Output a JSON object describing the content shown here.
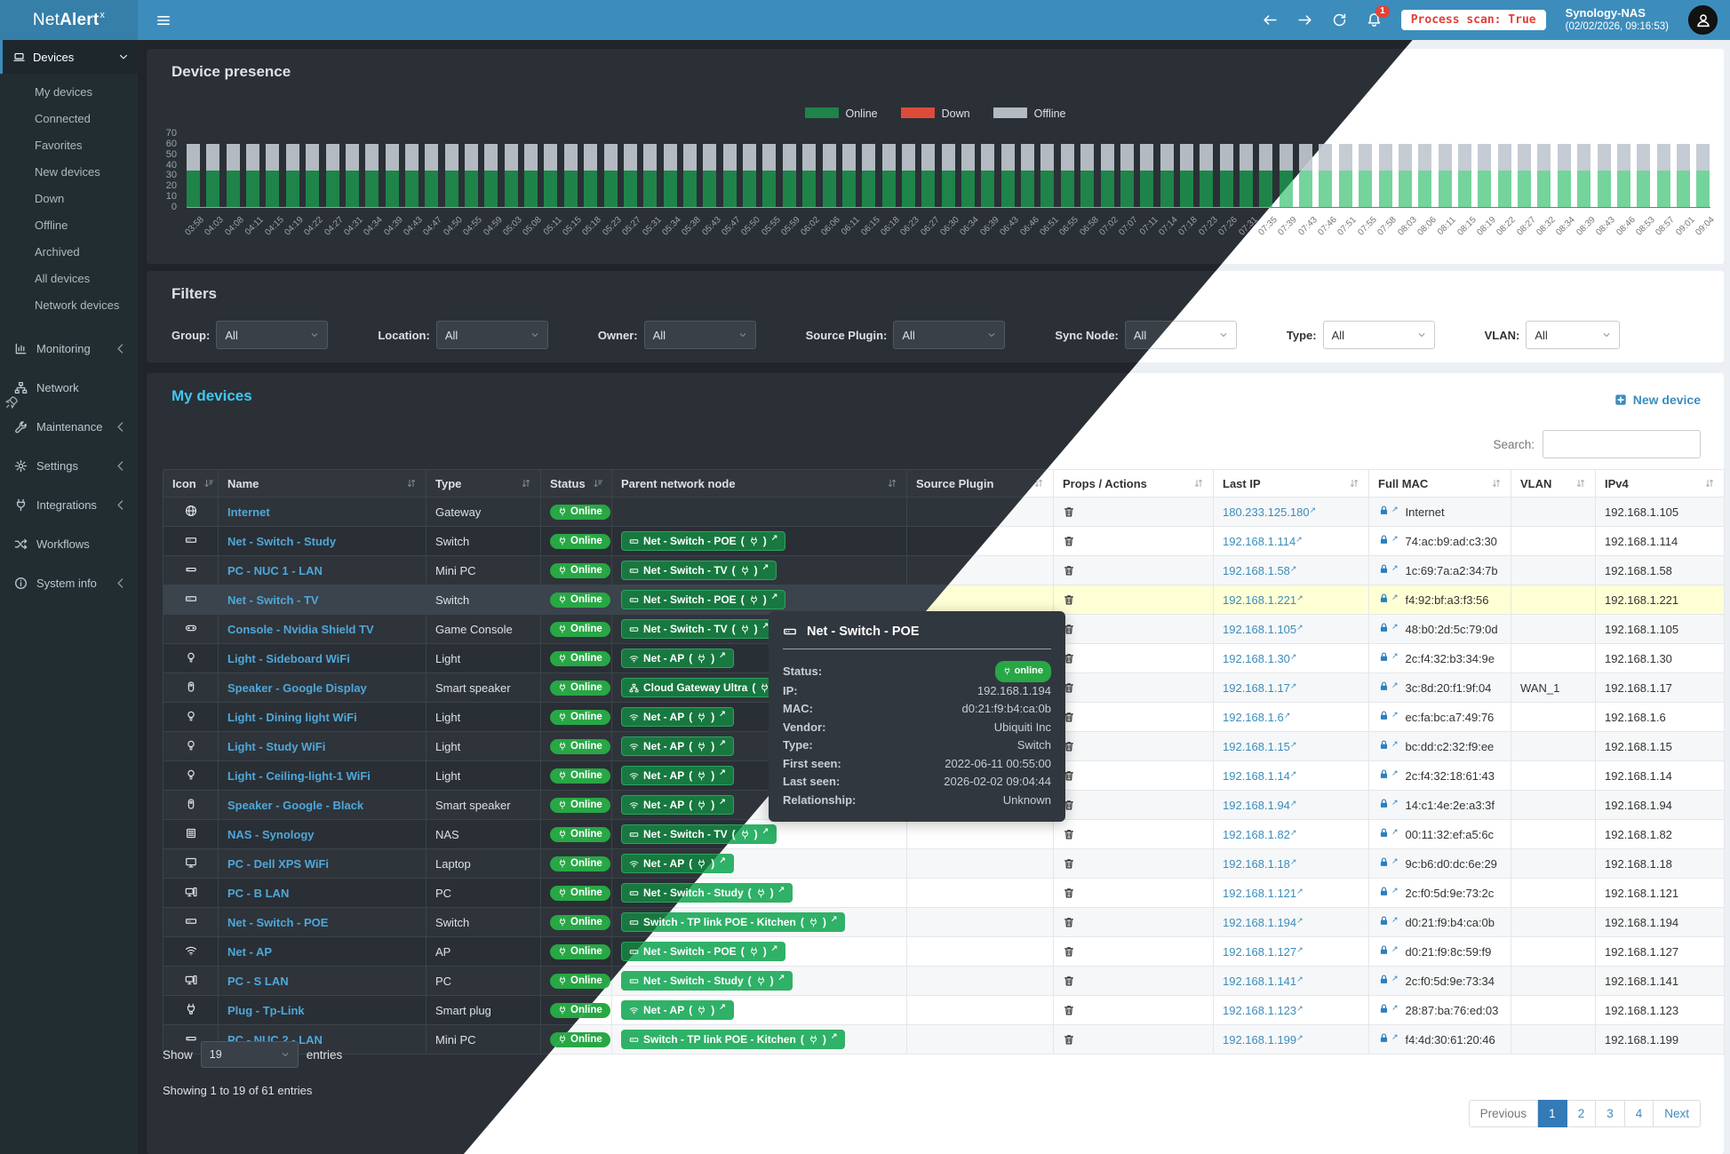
{
  "topbar": {
    "brand": {
      "pre": "Net",
      "bold": "Alert",
      "sup": "x"
    },
    "notification_badge": "1",
    "process_scan": "Process scan: True",
    "host_name": "Synology-NAS",
    "host_time": "(02/02/2026, 09:16:53)"
  },
  "glyphs": {
    "ext": "↗",
    "open": "(",
    "close": ")"
  },
  "sidebar": {
    "sections": [
      {
        "label": "Devices",
        "icon": "laptop",
        "chevron": "down",
        "children": [
          "My devices",
          "Connected",
          "Favorites",
          "New devices",
          "Down",
          "Offline",
          "Archived",
          "All devices",
          "Network devices"
        ]
      },
      {
        "label": "Monitoring",
        "icon": "chart",
        "chevron": "left"
      },
      {
        "label": "Network",
        "icon": "network",
        "chevron": ""
      },
      {
        "label": "Maintenance",
        "icon": "wrench",
        "chevron": "left"
      },
      {
        "label": "Settings",
        "icon": "gear",
        "chevron": "left"
      },
      {
        "label": "Integrations",
        "icon": "plug",
        "chevron": "left"
      },
      {
        "label": "Workflows",
        "icon": "shuffle",
        "chevron": ""
      },
      {
        "label": "System info",
        "icon": "info",
        "chevron": "left"
      }
    ]
  },
  "chart_data": {
    "type": "bar",
    "stacked": true,
    "title": "Device presence",
    "xlabel": "",
    "ylabel": "",
    "ylim": [
      0,
      70
    ],
    "yticks": [
      0,
      10,
      20,
      30,
      40,
      50,
      60,
      70
    ],
    "grid": false,
    "legend_position": "top-center",
    "categories": [
      "03:58",
      "04:03",
      "04:08",
      "04:11",
      "04:15",
      "04:19",
      "04:22",
      "04:27",
      "04:31",
      "04:34",
      "04:39",
      "04:43",
      "04:47",
      "04:50",
      "04:55",
      "04:59",
      "05:03",
      "05:08",
      "05:11",
      "05:15",
      "05:18",
      "05:23",
      "05:27",
      "05:31",
      "05:34",
      "05:38",
      "05:43",
      "05:47",
      "05:50",
      "05:55",
      "05:59",
      "06:02",
      "06:06",
      "06:11",
      "06:15",
      "06:18",
      "06:23",
      "06:27",
      "06:30",
      "06:34",
      "06:39",
      "06:43",
      "06:46",
      "06:51",
      "06:55",
      "06:58",
      "07:02",
      "07:07",
      "07:11",
      "07:14",
      "07:18",
      "07:23",
      "07:26",
      "07:31",
      "07:35",
      "07:39",
      "07:43",
      "07:46",
      "07:51",
      "07:55",
      "07:58",
      "08:03",
      "08:06",
      "08:11",
      "08:15",
      "08:19",
      "08:22",
      "08:27",
      "08:32",
      "08:34",
      "08:39",
      "08:43",
      "08:46",
      "08:53",
      "08:57",
      "09:01",
      "09:04"
    ],
    "series": [
      {
        "name": "Online",
        "color_dark": "#1e8449",
        "color_light": "#74d49c",
        "values": [
          35,
          35,
          35,
          35,
          35,
          35,
          35,
          35,
          35,
          35,
          35,
          35,
          35,
          35,
          35,
          35,
          35,
          35,
          35,
          35,
          35,
          35,
          35,
          35,
          35,
          35,
          35,
          35,
          35,
          35,
          35,
          35,
          35,
          35,
          35,
          35,
          35,
          35,
          35,
          35,
          35,
          35,
          35,
          35,
          35,
          35,
          35,
          35,
          35,
          35,
          35,
          35,
          35,
          35,
          35,
          35,
          35,
          35,
          35,
          35,
          35,
          35,
          35,
          35,
          35,
          35,
          35,
          35,
          35,
          35,
          35,
          35,
          35,
          35,
          35,
          35,
          35
        ]
      },
      {
        "name": "Down",
        "color_dark": "#dd4b39",
        "color_light": "#e2574c",
        "values": [
          0,
          0,
          0,
          0,
          0,
          0,
          0,
          0,
          0,
          0,
          0,
          0,
          0,
          0,
          0,
          0,
          0,
          0,
          0,
          0,
          0,
          0,
          0,
          0,
          0,
          0,
          0,
          0,
          0,
          0,
          0,
          0,
          0,
          0,
          0,
          0,
          0,
          0,
          0,
          0,
          0,
          0,
          0,
          0,
          0,
          0,
          0,
          0,
          0,
          0,
          0,
          0,
          0,
          0,
          0,
          0,
          0,
          0,
          0,
          0,
          0,
          0,
          0,
          0,
          0,
          0,
          0,
          0,
          0,
          0,
          0,
          0,
          0,
          0,
          0,
          0,
          0
        ]
      },
      {
        "name": "Offline",
        "color_dark": "#b4bac2",
        "color_light": "#c6ccd4",
        "values": [
          25,
          25,
          25,
          25,
          25,
          25,
          25,
          25,
          25,
          25,
          25,
          25,
          25,
          25,
          25,
          25,
          25,
          25,
          25,
          25,
          25,
          25,
          25,
          25,
          25,
          25,
          25,
          25,
          25,
          25,
          25,
          25,
          25,
          25,
          25,
          25,
          25,
          25,
          25,
          25,
          25,
          25,
          25,
          25,
          25,
          25,
          25,
          25,
          25,
          25,
          25,
          25,
          25,
          25,
          25,
          25,
          25,
          25,
          25,
          25,
          25,
          25,
          25,
          25,
          25,
          25,
          25,
          25,
          25,
          25,
          25,
          25,
          25,
          25,
          25,
          25,
          25
        ]
      }
    ]
  },
  "filters": {
    "title": "Filters",
    "items": [
      {
        "label": "Group:",
        "value": "All"
      },
      {
        "label": "Location:",
        "value": "All"
      },
      {
        "label": "Owner:",
        "value": "All"
      },
      {
        "label": "Source Plugin:",
        "value": "All"
      },
      {
        "label": "Sync Node:",
        "value": "All"
      },
      {
        "label": "Type:",
        "value": "All"
      },
      {
        "label": "VLAN:",
        "value": "All"
      }
    ]
  },
  "devices_card": {
    "title": "My devices",
    "new_device": "New device",
    "search_label": "Search:",
    "search_value": "",
    "columns": [
      {
        "label": "Icon",
        "sort": "bars"
      },
      {
        "label": "Name",
        "sort": "both"
      },
      {
        "label": "Type",
        "sort": "both"
      },
      {
        "label": "Status",
        "sort": "bars"
      },
      {
        "label": "Parent network node",
        "sort": "both"
      },
      {
        "label": "Source Plugin",
        "sort": "both"
      },
      {
        "label": "Props / Actions",
        "sort": "both"
      },
      {
        "label": "Last IP",
        "sort": "both"
      },
      {
        "label": "Full MAC",
        "sort": "both"
      },
      {
        "label": "VLAN",
        "sort": "both"
      },
      {
        "label": "IPv4",
        "sort": "both"
      }
    ],
    "rows": [
      {
        "icon": "globe",
        "name": "Internet",
        "type": "Gateway",
        "status": "Online",
        "parent": null,
        "last_ip": "180.233.125.180",
        "mac": "Internet",
        "vlan": "",
        "ipv4": "192.168.1.105",
        "highlight": false
      },
      {
        "icon": "switch",
        "name": "Net - Switch - Study",
        "type": "Switch",
        "status": "Online",
        "parent": {
          "icon": "switch",
          "label": "Net - Switch - POE"
        },
        "last_ip": "192.168.1.114",
        "mac": "74:ac:b9:ad:c3:30",
        "vlan": "",
        "ipv4": "192.168.1.114",
        "highlight": false
      },
      {
        "icon": "minipc",
        "name": "PC - NUC 1 - LAN",
        "type": "Mini PC",
        "status": "Online",
        "parent": {
          "icon": "switch",
          "label": "Net - Switch - TV"
        },
        "last_ip": "192.168.1.58",
        "mac": "1c:69:7a:a2:34:7b",
        "vlan": "",
        "ipv4": "192.168.1.58",
        "highlight": false
      },
      {
        "icon": "switch",
        "name": "Net - Switch - TV",
        "type": "Switch",
        "status": "Online",
        "parent": {
          "icon": "switch",
          "label": "Net - Switch - POE"
        },
        "last_ip": "192.168.1.221",
        "mac": "f4:92:bf:a3:f3:56",
        "vlan": "",
        "ipv4": "192.168.1.221",
        "highlight": true
      },
      {
        "icon": "console",
        "name": "Console - Nvidia Shield TV",
        "type": "Game Console",
        "status": "Online",
        "parent": {
          "icon": "switch",
          "label": "Net - Switch - TV"
        },
        "last_ip": "192.168.1.105",
        "mac": "48:b0:2d:5c:79:0d",
        "vlan": "",
        "ipv4": "192.168.1.105",
        "highlight": false
      },
      {
        "icon": "bulb",
        "name": "Light - Sideboard WiFi",
        "type": "Light",
        "status": "Online",
        "parent": {
          "icon": "wifi",
          "label": "Net - AP"
        },
        "last_ip": "192.168.1.30",
        "mac": "2c:f4:32:b3:34:9e",
        "vlan": "",
        "ipv4": "192.168.1.30",
        "highlight": false
      },
      {
        "icon": "speaker",
        "name": "Speaker - Google Display",
        "type": "Smart speaker",
        "status": "Online",
        "parent": {
          "icon": "netnode",
          "label": "Cloud Gateway Ultra"
        },
        "last_ip": "192.168.1.17",
        "mac": "3c:8d:20:f1:9f:04",
        "vlan": "WAN_1",
        "ipv4": "192.168.1.17",
        "highlight": false
      },
      {
        "icon": "bulb",
        "name": "Light - Dining light WiFi",
        "type": "Light",
        "status": "Online",
        "parent": {
          "icon": "wifi",
          "label": "Net - AP"
        },
        "last_ip": "192.168.1.6",
        "mac": "ec:fa:bc:a7:49:76",
        "vlan": "",
        "ipv4": "192.168.1.6",
        "highlight": false
      },
      {
        "icon": "bulb",
        "name": "Light - Study WiFi",
        "type": "Light",
        "status": "Online",
        "parent": {
          "icon": "wifi",
          "label": "Net - AP"
        },
        "last_ip": "192.168.1.15",
        "mac": "bc:dd:c2:32:f9:ee",
        "vlan": "",
        "ipv4": "192.168.1.15",
        "highlight": false
      },
      {
        "icon": "bulb",
        "name": "Light - Ceiling-light-1 WiFi",
        "type": "Light",
        "status": "Online",
        "parent": {
          "icon": "wifi",
          "label": "Net - AP"
        },
        "last_ip": "192.168.1.14",
        "mac": "2c:f4:32:18:61:43",
        "vlan": "",
        "ipv4": "192.168.1.14",
        "highlight": false
      },
      {
        "icon": "speaker",
        "name": "Speaker - Google - Black",
        "type": "Smart speaker",
        "status": "Online",
        "parent": {
          "icon": "wifi",
          "label": "Net - AP"
        },
        "last_ip": "192.168.1.94",
        "mac": "14:c1:4e:2e:a3:3f",
        "vlan": "",
        "ipv4": "192.168.1.94",
        "highlight": false
      },
      {
        "icon": "nas",
        "name": "NAS - Synology",
        "type": "NAS",
        "status": "Online",
        "parent": {
          "icon": "switch",
          "label": "Net - Switch - TV"
        },
        "last_ip": "192.168.1.82",
        "mac": "00:11:32:ef:a5:6c",
        "vlan": "",
        "ipv4": "192.168.1.82",
        "highlight": false
      },
      {
        "icon": "monitor",
        "name": "PC - Dell XPS WiFi",
        "type": "Laptop",
        "status": "Online",
        "parent": {
          "icon": "wifi",
          "label": "Net - AP"
        },
        "last_ip": "192.168.1.18",
        "mac": "9c:b6:d0:dc:6e:29",
        "vlan": "",
        "ipv4": "192.168.1.18",
        "highlight": false
      },
      {
        "icon": "pc",
        "name": "PC - B LAN",
        "type": "PC",
        "status": "Online",
        "parent": {
          "icon": "switch",
          "label": "Net - Switch - Study"
        },
        "last_ip": "192.168.1.121",
        "mac": "2c:f0:5d:9e:73:2c",
        "vlan": "",
        "ipv4": "192.168.1.121",
        "highlight": false
      },
      {
        "icon": "switch",
        "name": "Net - Switch - POE",
        "type": "Switch",
        "status": "Online",
        "parent": {
          "icon": "switch",
          "label": "Switch - TP link POE - Kitchen"
        },
        "last_ip": "192.168.1.194",
        "mac": "d0:21:f9:b4:ca:0b",
        "vlan": "",
        "ipv4": "192.168.1.194",
        "highlight": false
      },
      {
        "icon": "wifi",
        "name": "Net - AP",
        "type": "AP",
        "status": "Online",
        "parent": {
          "icon": "switch",
          "label": "Net - Switch - POE"
        },
        "last_ip": "192.168.1.127",
        "mac": "d0:21:f9:8c:59:f9",
        "vlan": "",
        "ipv4": "192.168.1.127",
        "highlight": false
      },
      {
        "icon": "pc",
        "name": "PC - S LAN",
        "type": "PC",
        "status": "Online",
        "parent": {
          "icon": "switch",
          "label": "Net - Switch - Study"
        },
        "last_ip": "192.168.1.141",
        "mac": "2c:f0:5d:9e:73:34",
        "vlan": "",
        "ipv4": "192.168.1.141",
        "highlight": false
      },
      {
        "icon": "smartplug",
        "name": "Plug - Tp-Link",
        "type": "Smart plug",
        "status": "Online",
        "parent": {
          "icon": "wifi",
          "label": "Net - AP"
        },
        "last_ip": "192.168.1.123",
        "mac": "28:87:ba:76:ed:03",
        "vlan": "",
        "ipv4": "192.168.1.123",
        "highlight": false
      },
      {
        "icon": "minipc",
        "name": "PC - NUC 2 - LAN",
        "type": "Mini PC",
        "status": "Online",
        "parent": {
          "icon": "switch",
          "label": "Switch - TP link POE - Kitchen"
        },
        "last_ip": "192.168.1.199",
        "mac": "f4:4d:30:61:20:46",
        "vlan": "",
        "ipv4": "192.168.1.199",
        "highlight": false
      }
    ],
    "show_label": "Show",
    "show_value": "19",
    "entries_label": "entries",
    "summary": "Showing 1 to 19 of 61 entries",
    "pagination": [
      {
        "label": "Previous",
        "state": "disabled"
      },
      {
        "label": "1",
        "state": "active"
      },
      {
        "label": "2",
        "state": ""
      },
      {
        "label": "3",
        "state": ""
      },
      {
        "label": "4",
        "state": ""
      },
      {
        "label": "Next",
        "state": ""
      }
    ]
  },
  "tooltip": {
    "icon": "switch",
    "title": "Net - Switch - POE",
    "fields": [
      {
        "label": "Status:",
        "value": "online",
        "badge": true
      },
      {
        "label": "IP:",
        "value": "192.168.1.194",
        "badge": false
      },
      {
        "label": "MAC:",
        "value": "d0:21:f9:b4:ca:0b",
        "badge": false
      },
      {
        "label": "Vendor:",
        "value": "Ubiquiti Inc",
        "badge": false
      },
      {
        "label": "Type:",
        "value": "Switch",
        "badge": false
      },
      {
        "label": "First seen:",
        "value": "2022-06-11 00:55:00",
        "badge": false
      },
      {
        "label": "Last seen:",
        "value": "2026-02-02 09:04:44",
        "badge": false
      },
      {
        "label": "Relationship:",
        "value": "Unknown",
        "badge": false
      }
    ]
  },
  "colors": {
    "topbar_blue": "#3c8dbc",
    "logo_blue": "#367fa9",
    "sidebar_dark": "#222d32",
    "online_green": "#28a745",
    "down_red": "#dd4b39",
    "offline_gray": "#b4bac2",
    "badge_green_dark": "#17793f",
    "badge_green_light": "#2fb167",
    "link_blue": "#3c8dbc",
    "title_cyan": "#3fc8f2",
    "highlight_yellow": "#ffffd6",
    "scan_pill_red": "#e0403a",
    "pager_active": "#337ab7"
  }
}
